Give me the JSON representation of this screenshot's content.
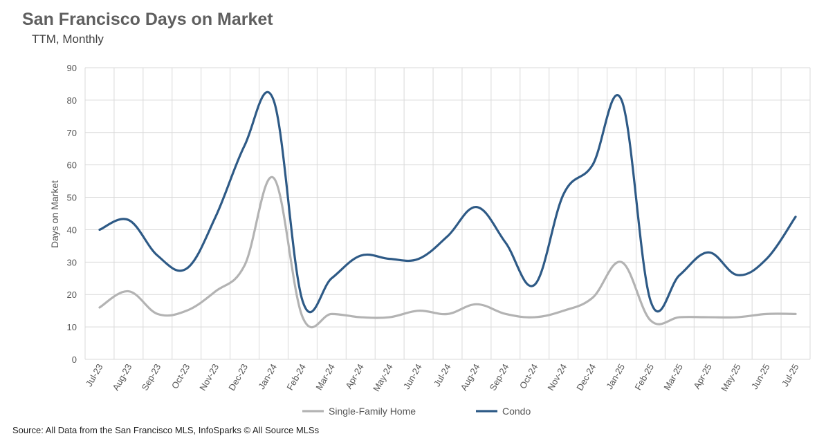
{
  "chart_data": {
    "type": "line",
    "title": "San Francisco Days on Market",
    "subtitle": "TTM, Monthly",
    "xlabel": "",
    "ylabel": "Days on Market",
    "ylim": [
      0,
      90
    ],
    "yticks": [
      0,
      10,
      20,
      30,
      40,
      50,
      60,
      70,
      80,
      90
    ],
    "grid": true,
    "legend_position": "bottom",
    "categories": [
      "Jul-23",
      "Aug-23",
      "Sep-23",
      "Oct-23",
      "Nov-23",
      "Dec-23",
      "Jan-24",
      "Feb-24",
      "Mar-24",
      "Apr-24",
      "May-24",
      "Jun-24",
      "Jul-24",
      "Aug-24",
      "Sep-24",
      "Oct-24",
      "Nov-24",
      "Dec-24",
      "Jan-25",
      "Feb-25",
      "Mar-25",
      "Apr-25",
      "May-25",
      "Jun-25",
      "Jul-25"
    ],
    "series": [
      {
        "name": "Single-Family Home",
        "color": "#b3b3b3",
        "values": [
          16,
          21,
          14,
          15,
          21,
          29,
          56,
          13,
          14,
          13,
          13,
          15,
          14,
          17,
          14,
          13,
          15,
          19,
          30,
          12,
          13,
          13,
          13,
          14,
          14
        ]
      },
      {
        "name": "Condo",
        "color": "#2e5a86",
        "values": [
          40,
          43,
          32,
          28,
          44,
          66,
          80,
          18,
          25,
          32,
          31,
          31,
          38,
          47,
          36,
          23,
          51,
          60,
          80,
          18,
          26,
          33,
          26,
          31,
          44
        ]
      }
    ]
  },
  "source": "Source: All Data from the San Francisco MLS, InfoSparks © All Source MLSs"
}
